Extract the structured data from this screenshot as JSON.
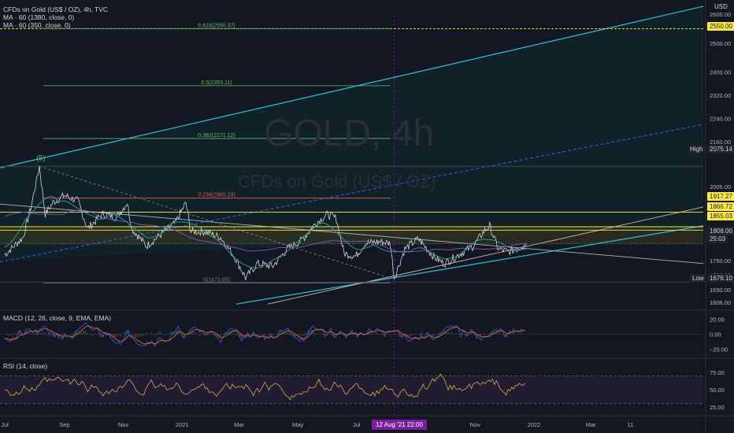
{
  "header": {
    "symbol_line": "CFDs on Gold (US$ / OZ), 4h, TVC",
    "ma1": "MA · 60 (1380, close, 0)",
    "ma2": "MA · 60 (350, close, 0)"
  },
  "watermark": {
    "symbol": "GOLD, 4h",
    "description": "CFDs on Gold (US$ / OZ)"
  },
  "price_axis": {
    "unit": "USD",
    "ticks": [
      "2600.00",
      "2550.00",
      "2500.00",
      "2400.00",
      "2320.00",
      "2240.00",
      "2160.00",
      "2075.14",
      "2005.00",
      "1930.00",
      "1917.27",
      "1866.72",
      "1855.03",
      "1808.00",
      "1750.00",
      "1700.00",
      "1676.10",
      "1650.00",
      "1606.00"
    ],
    "ticks_plain": [
      "2600.00",
      "2500.00",
      "2400.00",
      "2320.00",
      "2240.00",
      "2160.00",
      "2005.00",
      "1930.00",
      "1750.00",
      "1700.00",
      "1650.00",
      "1606.00"
    ],
    "high_label": "High",
    "high_value": "2075.14",
    "low_label": "Low",
    "low_value": "1676.10",
    "last_price": "1808.00",
    "countdown": "25:03",
    "level_2550": "2550.00",
    "level_1917": "1917.27",
    "level_1866": "1866.72",
    "level_1855": "1855.03"
  },
  "fib_labels": {
    "f618": "0.618(2550.37)",
    "f50": "0.5(2353.11)",
    "f382": "0.382(2171.12)",
    "f236": "0.236(1965.29)",
    "f0": "0(1673.05)",
    "wave": "(5)"
  },
  "macd": {
    "label": "MACD (12, 26, close, 9, EMA, EMA)",
    "ticks": [
      "20.00",
      "0.00",
      "−20.00"
    ]
  },
  "rsi": {
    "label": "RSI (14, close)",
    "ticks": [
      "75.00",
      "50.00",
      "25.00"
    ]
  },
  "time_axis": {
    "labels": [
      "Jul",
      "Sep",
      "Nov",
      "2021",
      "Mar",
      "May",
      "Jul",
      "Nov",
      "2022",
      "Mar",
      "11"
    ],
    "crosshair_label": "12 Aug '21   22:00"
  },
  "colors": {
    "background": "#131722",
    "price": "#d1d4dc",
    "channel": "#26c6da",
    "fib": "#66bb6a",
    "ma_fast": "#26a69a",
    "ma_slow": "#7e57c2",
    "resistance": "#ffeb3b",
    "rsi_line": "#e0a93a",
    "macd_line": "#2962ff",
    "signal_line": "#ff6d00",
    "crosshair_tag": "#7b1fa2"
  },
  "chart_data": {
    "type": "line",
    "title": "GOLD, 4h",
    "price_range": [
      1606,
      2600
    ],
    "series": [
      {
        "name": "CFDs on Gold (US$ / OZ)",
        "x": [
          "2020-07-01",
          "2020-07-20",
          "2020-07-28",
          "2020-08-06",
          "2020-08-12",
          "2020-08-20",
          "2020-09-01",
          "2020-09-15",
          "2020-09-25",
          "2020-10-10",
          "2020-10-25",
          "2020-11-05",
          "2020-11-10",
          "2020-11-25",
          "2020-12-10",
          "2020-12-25",
          "2021-01-05",
          "2021-01-10",
          "2021-01-25",
          "2021-02-10",
          "2021-02-25",
          "2021-03-08",
          "2021-03-20",
          "2021-04-05",
          "2021-04-20",
          "2021-05-05",
          "2021-05-20",
          "2021-06-01",
          "2021-06-10",
          "2021-06-18",
          "2021-06-30",
          "2021-07-10",
          "2021-07-25",
          "2021-08-05",
          "2021-08-09",
          "2021-08-20",
          "2021-09-03",
          "2021-09-20",
          "2021-09-30",
          "2021-10-15",
          "2021-10-30",
          "2021-11-10",
          "2021-11-16",
          "2021-11-25",
          "2021-12-05",
          "2021-12-15",
          "2021-12-24"
        ],
        "values": [
          1770,
          1830,
          1930,
          2075,
          1910,
          1950,
          1975,
          1955,
          1860,
          1910,
          1900,
          1950,
          1860,
          1800,
          1840,
          1880,
          1950,
          1850,
          1850,
          1830,
          1760,
          1690,
          1740,
          1730,
          1790,
          1820,
          1880,
          1910,
          1895,
          1775,
          1765,
          1810,
          1815,
          1810,
          1690,
          1790,
          1825,
          1760,
          1740,
          1770,
          1800,
          1850,
          1870,
          1790,
          1780,
          1790,
          1808
        ]
      }
    ],
    "horizontal_levels": [
      2550,
      2075.14,
      1917.27,
      1866.72,
      1855.03,
      1808,
      1676.1
    ],
    "fibonacci": [
      {
        "level": 0.618,
        "price": 2550.37
      },
      {
        "level": 0.5,
        "price": 2353.11
      },
      {
        "level": 0.382,
        "price": 2171.12
      },
      {
        "level": 0.236,
        "price": 1965.29
      },
      {
        "level": 0,
        "price": 1673.05
      }
    ],
    "subcharts": [
      {
        "name": "MACD (12, 26, close, 9, EMA, EMA)",
        "ylim": [
          -20,
          20
        ]
      },
      {
        "name": "RSI (14, close)",
        "ylim": [
          25,
          75
        ]
      }
    ],
    "grid": false
  }
}
